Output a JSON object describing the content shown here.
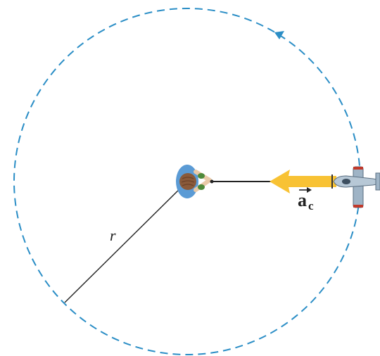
{
  "labels": {
    "radius": "r",
    "acceleration_symbol": "a",
    "acceleration_subscript": "c"
  },
  "colors": {
    "path": "#2b8ec6",
    "arrow": "#f8c234",
    "line": "#222222",
    "plane_body": "#9fb4c6",
    "plane_stripe": "#c0392b",
    "person_shirt": "#5b9bd5",
    "person_hair": "#8a5a3a",
    "person_skin": "#e9c9a8"
  },
  "icons": {
    "direction": "arrowhead-icon",
    "plane": "airplane-icon",
    "person": "person-topview-icon",
    "vector": "vector-arrow-icon"
  }
}
